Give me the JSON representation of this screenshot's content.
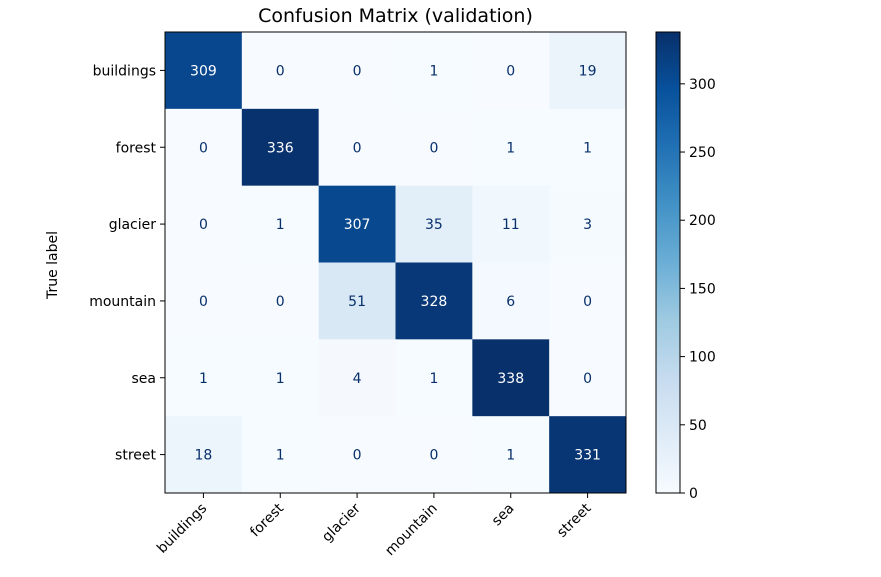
{
  "chart_data": {
    "type": "heatmap",
    "title": "Confusion Matrix (validation)",
    "ylabel": "True label",
    "xlabel": "",
    "x_categories": [
      "buildings",
      "forest",
      "glacier",
      "mountain",
      "sea",
      "street"
    ],
    "y_categories": [
      "buildings",
      "forest",
      "glacier",
      "mountain",
      "sea",
      "street"
    ],
    "values": [
      [
        309,
        0,
        0,
        1,
        0,
        19
      ],
      [
        0,
        336,
        0,
        0,
        1,
        1
      ],
      [
        0,
        1,
        307,
        35,
        11,
        3
      ],
      [
        0,
        0,
        51,
        328,
        6,
        0
      ],
      [
        1,
        1,
        4,
        1,
        338,
        0
      ],
      [
        18,
        1,
        0,
        0,
        1,
        331
      ]
    ],
    "colormap": "Blues",
    "color_range": [
      0,
      338
    ],
    "colorbar_ticks": [
      0,
      50,
      100,
      150,
      200,
      250,
      300
    ],
    "grid": false,
    "colorbar_placement": "right"
  }
}
